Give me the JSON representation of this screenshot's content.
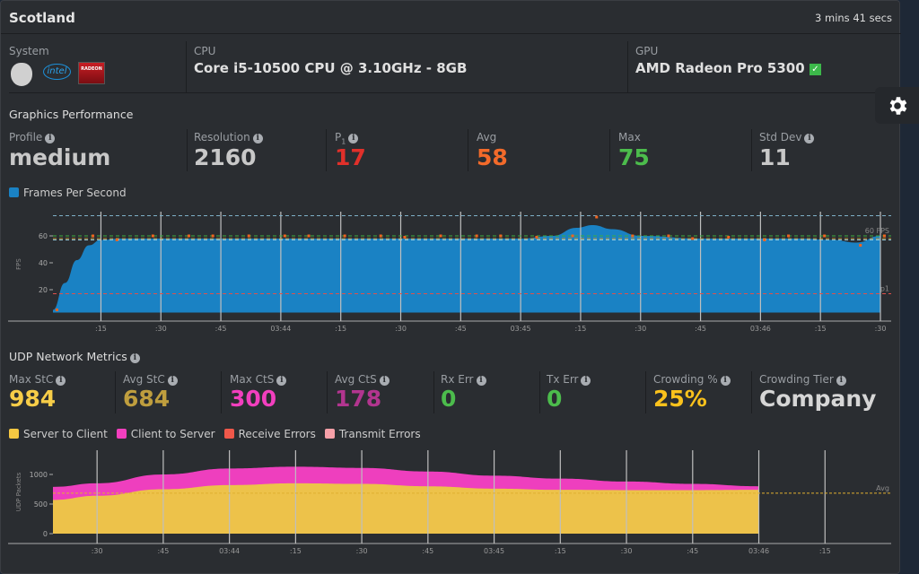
{
  "header": {
    "title": "Scotland",
    "duration": "3 mins 41 secs"
  },
  "system": {
    "label": "System",
    "logos": [
      "apple-logo",
      "intel-logo",
      "radeon-logo"
    ],
    "intel_text": "intel",
    "radeon_text": "RADEON"
  },
  "cpu": {
    "label": "CPU",
    "value": "Core i5-10500 CPU @ 3.10GHz - 8GB"
  },
  "gpu": {
    "label": "GPU",
    "value": "AMD Radeon Pro 5300",
    "verified": true
  },
  "graphics": {
    "title": "Graphics Performance",
    "stats": [
      {
        "label": "Profile",
        "value": "medium",
        "color": "#c8c8c8",
        "info": true
      },
      {
        "label": "Resolution",
        "value": "2160",
        "color": "#c8c8c8",
        "info": true
      },
      {
        "label": "P",
        "sub": "1",
        "value": "17",
        "color": "#e0302a",
        "info": true
      },
      {
        "label": "Avg",
        "value": "58",
        "color": "#f26a2a",
        "info": false
      },
      {
        "label": "Max",
        "value": "75",
        "color": "#4cbc4c",
        "info": false
      },
      {
        "label": "Std Dev",
        "value": "11",
        "color": "#c8c8c8",
        "info": true
      }
    ],
    "legend": [
      {
        "label": "Frames Per Second",
        "color": "#1a82c4"
      }
    ]
  },
  "network": {
    "title": "UDP Network Metrics",
    "stats": [
      {
        "label": "Max StC",
        "value": "984",
        "color": "#f7cd48"
      },
      {
        "label": "Avg StC",
        "value": "684",
        "color": "#bf9e3e"
      },
      {
        "label": "Max CtS",
        "value": "300",
        "color": "#f23fbe"
      },
      {
        "label": "Avg CtS",
        "value": "178",
        "color": "#b2358f"
      },
      {
        "label": "Rx Err",
        "value": "0",
        "color": "#4cbc4c"
      },
      {
        "label": "Tx Err",
        "value": "0",
        "color": "#4cbc4c"
      },
      {
        "label": "Crowding %",
        "value": "25%",
        "color": "#fbc21c"
      },
      {
        "label": "Crowding Tier",
        "value": "Company",
        "color": "#d6d6d6"
      }
    ],
    "legend": [
      {
        "label": "Server to Client",
        "color": "#f5c842"
      },
      {
        "label": "Client to Server",
        "color": "#f23fbe"
      },
      {
        "label": "Receive Errors",
        "color": "#f0584a"
      },
      {
        "label": "Transmit Errors",
        "color": "#f6a0a8"
      }
    ]
  },
  "chart_data": [
    {
      "type": "area",
      "ylabel": "FPS",
      "yticks": [
        20,
        40,
        60
      ],
      "ylim": [
        0,
        78
      ],
      "xlim": [
        "03:43:03",
        "03:46:30"
      ],
      "xticks": [
        [
          "03:43:15",
          ":15"
        ],
        [
          "03:43:30",
          ":30"
        ],
        [
          "03:43:45",
          ":45"
        ],
        [
          "03:44:00",
          "03:44"
        ],
        [
          "03:44:15",
          ":15"
        ],
        [
          "03:44:30",
          ":30"
        ],
        [
          "03:44:45",
          ":45"
        ],
        [
          "03:45:00",
          "03:45"
        ],
        [
          "03:45:15",
          ":15"
        ],
        [
          "03:45:30",
          ":30"
        ],
        [
          "03:45:45",
          ":45"
        ],
        [
          "03:46:00",
          "03:46"
        ],
        [
          "03:46:15",
          ":15"
        ],
        [
          "03:46:30",
          ":30"
        ]
      ],
      "series": [
        {
          "name": "Frames Per Second",
          "color": "#1a82c4",
          "points": [
            [
              "03:43:03",
              5
            ],
            [
              "03:43:06",
              25
            ],
            [
              "03:43:09",
              42
            ],
            [
              "03:43:12",
              53
            ],
            [
              "03:43:15",
              57
            ],
            [
              "03:43:20",
              58
            ],
            [
              "03:44:00",
              58
            ],
            [
              "03:45:00",
              58
            ],
            [
              "03:45:08",
              60
            ],
            [
              "03:45:14",
              66
            ],
            [
              "03:45:18",
              68
            ],
            [
              "03:45:23",
              65
            ],
            [
              "03:45:30",
              60
            ],
            [
              "03:45:45",
              58
            ],
            [
              "03:46:10",
              58
            ],
            [
              "03:46:18",
              57
            ],
            [
              "03:46:24",
              55
            ],
            [
              "03:46:30",
              60
            ]
          ]
        }
      ],
      "samples": [
        [
          "03:43:04",
          5
        ],
        [
          "03:43:13",
          60
        ],
        [
          "03:43:19",
          57
        ],
        [
          "03:43:28",
          60
        ],
        [
          "03:43:37",
          60
        ],
        [
          "03:43:43",
          60
        ],
        [
          "03:43:52",
          60
        ],
        [
          "03:44:01",
          60
        ],
        [
          "03:44:07",
          60
        ],
        [
          "03:44:16",
          60
        ],
        [
          "03:44:25",
          60
        ],
        [
          "03:44:31",
          59
        ],
        [
          "03:44:40",
          60
        ],
        [
          "03:44:49",
          60
        ],
        [
          "03:44:55",
          60
        ],
        [
          "03:45:04",
          59
        ],
        [
          "03:45:13",
          60
        ],
        [
          "03:45:19",
          74
        ],
        [
          "03:45:28",
          60
        ],
        [
          "03:45:37",
          60
        ],
        [
          "03:45:43",
          58
        ],
        [
          "03:45:52",
          59
        ],
        [
          "03:46:01",
          57
        ],
        [
          "03:46:07",
          60
        ],
        [
          "03:46:16",
          60
        ],
        [
          "03:46:25",
          53
        ],
        [
          "03:46:31",
          60
        ]
      ],
      "reference_lines": [
        {
          "value": 75,
          "color": "#7fb0c8",
          "label": ""
        },
        {
          "value": 60,
          "color": "#3fae3f",
          "label": "60 FPS"
        },
        {
          "value": 58,
          "color": "#c9a040",
          "label": ""
        },
        {
          "value": 57,
          "color": "#9ad0e0",
          "label": ""
        },
        {
          "value": 17,
          "color": "#e0504a",
          "label": "p1"
        }
      ],
      "grid": "vertical"
    },
    {
      "type": "stacked_area",
      "ylabel": "UDP Packets",
      "yticks": [
        0,
        500,
        1000
      ],
      "ylim": [
        0,
        1350
      ],
      "xlim": [
        "03:43:20",
        "03:46:30"
      ],
      "xticks": [
        [
          "03:43:30",
          ":30"
        ],
        [
          "03:43:45",
          ":45"
        ],
        [
          "03:44:00",
          "03:44"
        ],
        [
          "03:44:15",
          ":15"
        ],
        [
          "03:44:30",
          ":30"
        ],
        [
          "03:44:45",
          ":45"
        ],
        [
          "03:45:00",
          "03:45"
        ],
        [
          "03:45:15",
          ":15"
        ],
        [
          "03:45:30",
          ":30"
        ],
        [
          "03:45:45",
          ":45"
        ],
        [
          "03:46:00",
          "03:46"
        ],
        [
          "03:46:15",
          ":15"
        ]
      ],
      "x": [
        "03:43:23",
        "03:43:30",
        "03:43:45",
        "03:44:00",
        "03:44:15",
        "03:44:30",
        "03:44:45",
        "03:45:00",
        "03:45:15",
        "03:45:30",
        "03:45:45",
        "03:46:00"
      ],
      "series": [
        {
          "name": "Server to Client",
          "color": "#edc24a",
          "values": [
            570,
            640,
            750,
            820,
            850,
            840,
            800,
            760,
            740,
            735,
            735,
            740
          ]
        },
        {
          "name": "Client to Server",
          "color": "#ee3fbe",
          "values": [
            220,
            210,
            250,
            280,
            280,
            270,
            250,
            220,
            190,
            145,
            105,
            60
          ]
        }
      ],
      "reference_lines": [
        {
          "value": 684,
          "color": "#e0b030",
          "label": "Avg"
        }
      ],
      "grid": "vertical"
    }
  ]
}
